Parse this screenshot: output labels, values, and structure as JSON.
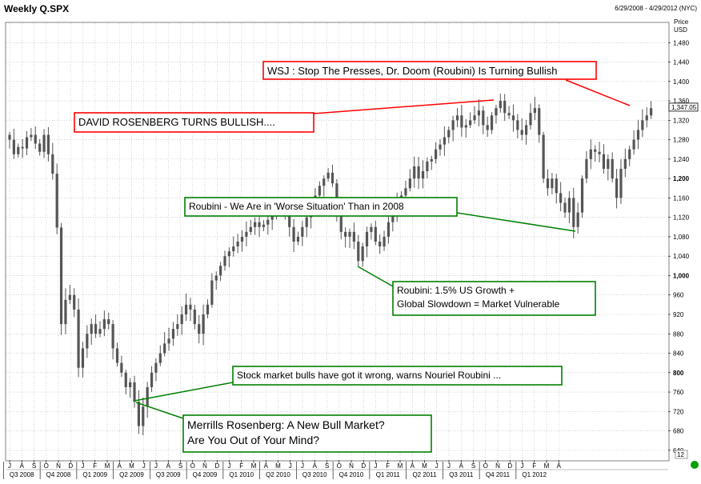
{
  "chart_data": {
    "type": "candlestick",
    "title": "Weekly Q.SPX",
    "date_range": "6/29/2008 - 4/29/2012 (NYC)",
    "y_axis_title": [
      "Price",
      "USD"
    ],
    "ylim": [
      620,
      1520
    ],
    "y_ticks": [
      "640",
      "680",
      "720",
      "760",
      "800",
      "840",
      "880",
      "920",
      "960",
      "1,000",
      "1,040",
      "1,080",
      "1,120",
      "1,160",
      "1,200",
      "1,240",
      "1,280",
      "1,320",
      "1,360",
      "1,400",
      "1,440",
      "1,480"
    ],
    "y_tick_values": [
      640,
      680,
      720,
      760,
      800,
      840,
      880,
      920,
      960,
      1000,
      1040,
      1080,
      1120,
      1160,
      1200,
      1240,
      1280,
      1320,
      1360,
      1400,
      1440,
      1480
    ],
    "bold_ticks": [
      "800",
      "1,000",
      "1,200"
    ],
    "last_price": "1,347.05",
    "last_value": 1347.05,
    "volume_axis_label": "12",
    "x_month_labels": [
      "J",
      "A",
      "S",
      "O",
      "N",
      "D",
      "J",
      "F",
      "M",
      "A",
      "M",
      "J",
      "J",
      "A",
      "S",
      "O",
      "N",
      "D",
      "J",
      "F",
      "M",
      "A",
      "M",
      "J",
      "J",
      "A",
      "S",
      "O",
      "N",
      "D",
      "J",
      "F",
      "M",
      "A",
      "M",
      "J",
      "J",
      "A",
      "S",
      "O",
      "N",
      "D",
      "J",
      "F",
      "M",
      "A"
    ],
    "x_quarter_labels": [
      "Q3 2008",
      "Q4 2008",
      "Q1 2009",
      "Q2 2009",
      "Q3 2009",
      "Q4 2009",
      "Q1 2010",
      "Q2 2010",
      "Q3 2010",
      "Q4 2010",
      "Q1 2011",
      "Q2 2011",
      "Q3 2011",
      "Q4 2011",
      "Q1 2012"
    ],
    "weekly_close_anchors": [
      [
        0,
        1280
      ],
      [
        1,
        1250
      ],
      [
        2,
        1265
      ],
      [
        3,
        1262
      ],
      [
        4,
        1285
      ],
      [
        5,
        1290
      ],
      [
        6,
        1272
      ],
      [
        7,
        1255
      ],
      [
        8,
        1290
      ],
      [
        9,
        1250
      ],
      [
        10,
        1210
      ],
      [
        11,
        1099
      ],
      [
        12,
        900
      ],
      [
        13,
        950
      ],
      [
        14,
        960
      ],
      [
        15,
        930
      ],
      [
        16,
        810
      ],
      [
        17,
        850
      ],
      [
        18,
        880
      ],
      [
        19,
        900
      ],
      [
        20,
        880
      ],
      [
        21,
        890
      ],
      [
        22,
        910
      ],
      [
        23,
        900
      ],
      [
        24,
        850
      ],
      [
        25,
        820
      ],
      [
        26,
        800
      ],
      [
        27,
        770
      ],
      [
        28,
        780
      ],
      [
        29,
        740
      ],
      [
        30,
        690
      ],
      [
        31,
        730
      ],
      [
        32,
        770
      ],
      [
        33,
        800
      ],
      [
        34,
        820
      ],
      [
        35,
        840
      ],
      [
        36,
        860
      ],
      [
        37,
        870
      ],
      [
        38,
        890
      ],
      [
        39,
        900
      ],
      [
        40,
        920
      ],
      [
        41,
        940
      ],
      [
        42,
        930
      ],
      [
        43,
        900
      ],
      [
        44,
        880
      ],
      [
        45,
        920
      ],
      [
        46,
        940
      ],
      [
        47,
        990
      ],
      [
        48,
        1000
      ],
      [
        49,
        1020
      ],
      [
        50,
        1040
      ],
      [
        51,
        1050
      ],
      [
        52,
        1060
      ],
      [
        53,
        1070
      ],
      [
        54,
        1080
      ],
      [
        55,
        1090
      ],
      [
        56,
        1100
      ],
      [
        57,
        1110
      ],
      [
        58,
        1100
      ],
      [
        59,
        1105
      ],
      [
        60,
        1115
      ],
      [
        61,
        1125
      ],
      [
        62,
        1140
      ],
      [
        63,
        1150
      ],
      [
        64,
        1135
      ],
      [
        65,
        1100
      ],
      [
        66,
        1070
      ],
      [
        67,
        1080
      ],
      [
        68,
        1100
      ],
      [
        69,
        1120
      ],
      [
        70,
        1140
      ],
      [
        71,
        1165
      ],
      [
        72,
        1185
      ],
      [
        73,
        1200
      ],
      [
        74,
        1212
      ],
      [
        75,
        1190
      ],
      [
        76,
        1130
      ],
      [
        77,
        1090
      ],
      [
        78,
        1080
      ],
      [
        79,
        1090
      ],
      [
        80,
        1070
      ],
      [
        81,
        1030
      ],
      [
        82,
        1060
      ],
      [
        83,
        1090
      ],
      [
        84,
        1100
      ],
      [
        85,
        1070
      ],
      [
        86,
        1060
      ],
      [
        87,
        1080
      ],
      [
        88,
        1110
      ],
      [
        89,
        1130
      ],
      [
        90,
        1150
      ],
      [
        91,
        1165
      ],
      [
        92,
        1180
      ],
      [
        93,
        1200
      ],
      [
        94,
        1225
      ],
      [
        95,
        1200
      ],
      [
        96,
        1215
      ],
      [
        97,
        1235
      ],
      [
        98,
        1240
      ],
      [
        99,
        1260
      ],
      [
        100,
        1270
      ],
      [
        101,
        1285
      ],
      [
        102,
        1300
      ],
      [
        103,
        1320
      ],
      [
        104,
        1330
      ],
      [
        105,
        1305
      ],
      [
        106,
        1310
      ],
      [
        107,
        1320
      ],
      [
        108,
        1330
      ],
      [
        109,
        1340
      ],
      [
        110,
        1310
      ],
      [
        111,
        1300
      ],
      [
        112,
        1330
      ],
      [
        113,
        1345
      ],
      [
        114,
        1360
      ],
      [
        115,
        1335
      ],
      [
        116,
        1330
      ],
      [
        117,
        1320
      ],
      [
        118,
        1300
      ],
      [
        119,
        1290
      ],
      [
        120,
        1310
      ],
      [
        121,
        1335
      ],
      [
        122,
        1345
      ],
      [
        123,
        1290
      ],
      [
        124,
        1200
      ],
      [
        125,
        1180
      ],
      [
        126,
        1200
      ],
      [
        127,
        1170
      ],
      [
        128,
        1150
      ],
      [
        129,
        1130
      ],
      [
        130,
        1160
      ],
      [
        131,
        1100
      ],
      [
        132,
        1130
      ],
      [
        133,
        1200
      ],
      [
        134,
        1240
      ],
      [
        135,
        1260
      ],
      [
        136,
        1255
      ],
      [
        137,
        1250
      ],
      [
        138,
        1220
      ],
      [
        139,
        1240
      ],
      [
        140,
        1200
      ],
      [
        141,
        1160
      ],
      [
        142,
        1220
      ],
      [
        143,
        1240
      ],
      [
        144,
        1260
      ],
      [
        145,
        1280
      ],
      [
        146,
        1300
      ],
      [
        147,
        1320
      ],
      [
        148,
        1330
      ],
      [
        149,
        1345
      ]
    ]
  },
  "annotations": [
    {
      "id": "wsj",
      "color": "#ff0000",
      "lines": [
        "WSJ : Stop The Presses, Dr. Doom (Roubini) Is Turning Bullish"
      ]
    },
    {
      "id": "rosenberg-bullish",
      "color": "#ff0000",
      "lines": [
        "DAVID ROSENBERG TURNS BULLISH...."
      ]
    },
    {
      "id": "worse-situation",
      "color": "#008000",
      "lines": [
        "Roubini - We Are in 'Worse Situation' Than in 2008"
      ]
    },
    {
      "id": "growth",
      "color": "#008000",
      "lines": [
        "Roubini: 1.5% US Growth +",
        "Global Slowdown = Market Vulnerable"
      ]
    },
    {
      "id": "bulls-wrong",
      "color": "#008000",
      "lines": [
        "Stock market bulls have got it wrong, warns Nouriel Roubini ..."
      ]
    },
    {
      "id": "merrill",
      "color": "#008000",
      "lines": [
        "Merrills Rosenberg: A New Bull Market?",
        "Are You Out of Your Mind?"
      ]
    }
  ],
  "colors": {
    "candle": "#555555",
    "grid": "#b8b8b8",
    "background": "#ffffff",
    "frame": "#808080",
    "corner_dot": "#00a000"
  }
}
